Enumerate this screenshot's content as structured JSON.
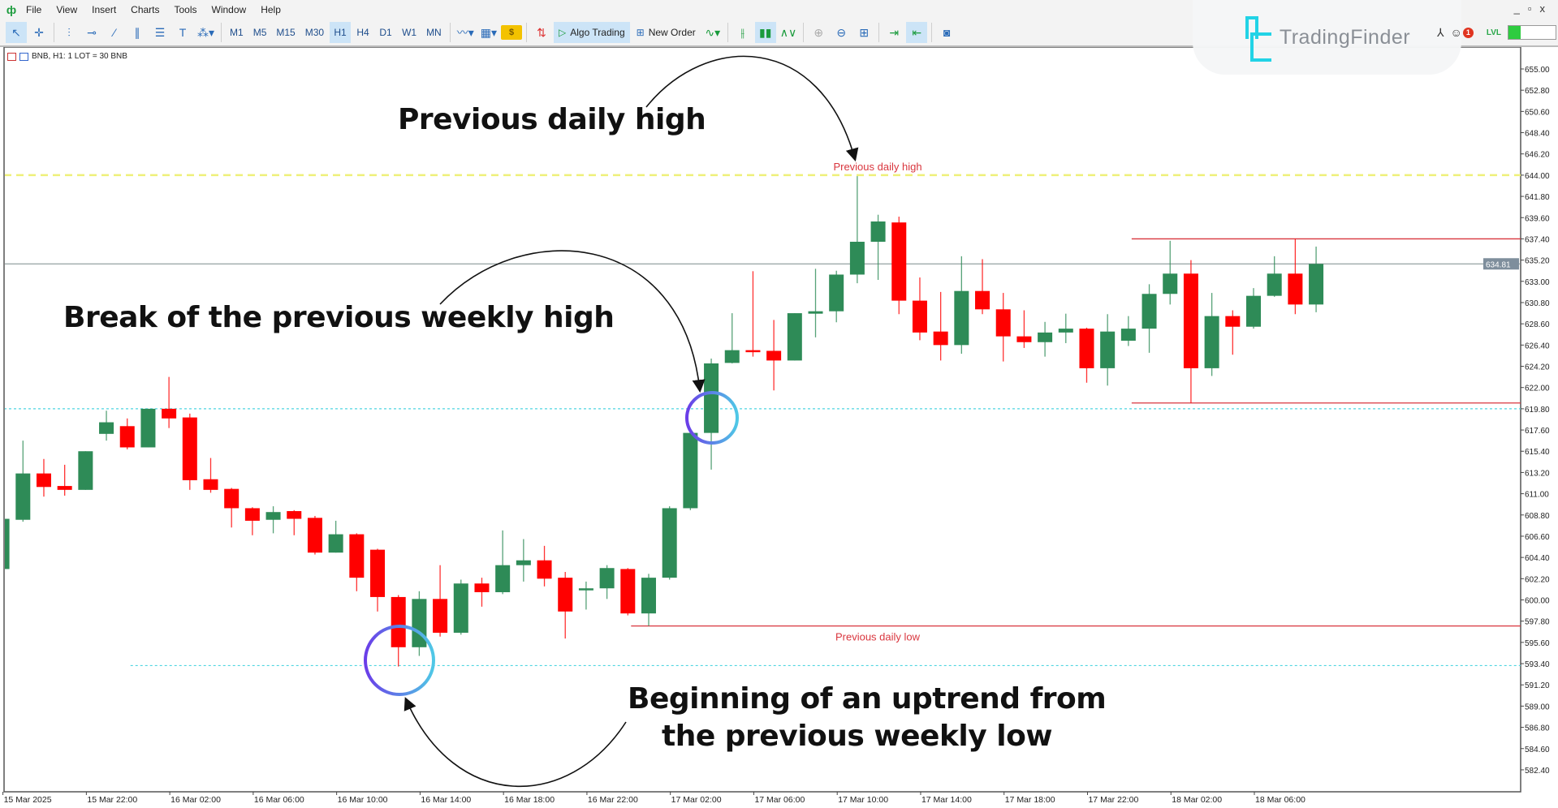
{
  "menu": [
    "File",
    "View",
    "Insert",
    "Charts",
    "Tools",
    "Window",
    "Help"
  ],
  "toolbar": {
    "tools": [
      "cursor-icon",
      "crosshair-icon",
      "vertical-line-icon",
      "horizontal-line-icon",
      "trendline-icon",
      "channel-icon",
      "fibonacci-icon",
      "text-icon",
      "shapes-icon"
    ],
    "timeframes": [
      "M1",
      "M5",
      "M15",
      "M30",
      "H1",
      "H4",
      "D1",
      "W1",
      "MN"
    ],
    "active_timeframe": "H1",
    "algo_trading_label": "Algo Trading",
    "new_order_label": "New Order",
    "notification_count": "1",
    "level_label": "LVL",
    "level_fill": 0.25
  },
  "brand": {
    "name": "TradingFinder",
    "color": "#22d3e6"
  },
  "chart_header": "BNB, H1:  1 LOT = 30 BNB",
  "annotations": {
    "prev_daily_high": "Previous daily high",
    "break_weekly_high": "Break of the previous weekly high",
    "uptrend_line1": "Beginning of an uptrend from",
    "uptrend_line2": "the previous weekly low"
  },
  "chart_data": {
    "type": "candlestick",
    "symbol": "BNB",
    "timeframe": "H1",
    "colors": {
      "up": "#2e8b57",
      "down": "#ff0000",
      "weekly_level": "#4fd6e0",
      "daily_high": "#eef07a",
      "daily_level": "#d9363e",
      "bid": "#7a8a8a"
    },
    "ylim": [
      580.6,
      656.6
    ],
    "y_tick_labels": [
      "655.00",
      "652.80",
      "650.60",
      "648.40",
      "646.20",
      "644.00",
      "641.80",
      "639.60",
      "637.40",
      "635.20",
      "633.00",
      "630.80",
      "628.60",
      "626.40",
      "624.20",
      "622.00",
      "619.80",
      "617.60",
      "615.40",
      "613.20",
      "611.00",
      "608.80",
      "606.60",
      "604.40",
      "602.20",
      "600.00",
      "597.80",
      "595.60",
      "593.40",
      "591.20",
      "589.00",
      "586.80",
      "584.60",
      "582.40"
    ],
    "x_tick_labels": [
      "15 Mar 2025",
      "15 Mar 22:00",
      "16 Mar 02:00",
      "16 Mar 06:00",
      "16 Mar 10:00",
      "16 Mar 14:00",
      "16 Mar 18:00",
      "16 Mar 22:00",
      "17 Mar 02:00",
      "17 Mar 06:00",
      "17 Mar 10:00",
      "17 Mar 14:00",
      "17 Mar 18:00",
      "17 Mar 22:00",
      "18 Mar 02:00",
      "18 Mar 06:00"
    ],
    "x_tick_every": 4,
    "candles_ohlc": [
      [
        603.2,
        608.4,
        603.2,
        608.4
      ],
      [
        608.3,
        616.5,
        608.1,
        613.1
      ],
      [
        613.1,
        614.6,
        610.7,
        611.7
      ],
      [
        611.8,
        614.0,
        610.8,
        611.4
      ],
      [
        611.4,
        615.4,
        611.4,
        615.4
      ],
      [
        617.2,
        619.6,
        616.5,
        618.4
      ],
      [
        618.0,
        618.8,
        615.6,
        615.8
      ],
      [
        615.8,
        619.8,
        615.8,
        619.8
      ],
      [
        619.8,
        623.1,
        617.8,
        618.8
      ],
      [
        618.9,
        619.3,
        611.4,
        612.4
      ],
      [
        612.5,
        614.7,
        611.1,
        611.4
      ],
      [
        611.5,
        611.6,
        607.5,
        609.5
      ],
      [
        609.5,
        609.6,
        606.7,
        608.2
      ],
      [
        608.3,
        609.7,
        606.9,
        609.1
      ],
      [
        609.2,
        609.3,
        606.7,
        608.4
      ],
      [
        608.5,
        608.7,
        604.7,
        604.9
      ],
      [
        604.9,
        608.2,
        604.9,
        606.8
      ],
      [
        606.8,
        606.9,
        600.9,
        602.3
      ],
      [
        605.2,
        605.3,
        598.8,
        600.3
      ],
      [
        600.3,
        600.5,
        593.1,
        595.1
      ],
      [
        595.1,
        600.9,
        594.2,
        600.1
      ],
      [
        600.1,
        603.6,
        596.2,
        596.6
      ],
      [
        596.6,
        602.1,
        596.4,
        601.7
      ],
      [
        601.7,
        602.3,
        599.3,
        600.8
      ],
      [
        600.8,
        607.2,
        600.6,
        603.6
      ],
      [
        603.6,
        606.3,
        601.9,
        604.1
      ],
      [
        604.1,
        605.6,
        601.4,
        602.2
      ],
      [
        602.3,
        602.9,
        596.0,
        598.8
      ],
      [
        601.0,
        601.9,
        599.0,
        601.2
      ],
      [
        601.2,
        603.6,
        600.1,
        603.3
      ],
      [
        603.2,
        603.3,
        598.4,
        598.6
      ],
      [
        598.6,
        602.7,
        597.3,
        602.3
      ],
      [
        602.3,
        609.7,
        602.1,
        609.5
      ],
      [
        609.5,
        617.3,
        609.3,
        617.3
      ],
      [
        617.3,
        625.0,
        613.5,
        624.5
      ],
      [
        624.55,
        629.7,
        624.5,
        625.87
      ],
      [
        625.87,
        634.05,
        625.2,
        625.67
      ],
      [
        625.8,
        629.0,
        621.7,
        624.8
      ],
      [
        624.8,
        629.7,
        624.8,
        629.7
      ],
      [
        629.65,
        634.3,
        627.2,
        629.9
      ],
      [
        629.9,
        634.1,
        628.76,
        633.7
      ],
      [
        633.7,
        643.9,
        632.8,
        637.1
      ],
      [
        637.1,
        639.9,
        633.15,
        639.2
      ],
      [
        639.1,
        639.7,
        629.6,
        631.0
      ],
      [
        631.0,
        633.4,
        626.9,
        627.7
      ],
      [
        627.8,
        631.9,
        624.8,
        626.4
      ],
      [
        626.4,
        635.6,
        625.5,
        632.0
      ],
      [
        632.0,
        635.3,
        629.6,
        630.1
      ],
      [
        630.1,
        631.8,
        624.7,
        627.3
      ],
      [
        627.3,
        630.0,
        626.1,
        626.7
      ],
      [
        626.7,
        628.8,
        625.2,
        627.7
      ],
      [
        627.7,
        629.65,
        626.6,
        628.1
      ],
      [
        628.1,
        628.2,
        622.5,
        624.0
      ],
      [
        624.0,
        629.6,
        622.2,
        627.8
      ],
      [
        626.85,
        629.4,
        626.3,
        628.1
      ],
      [
        628.1,
        632.7,
        625.6,
        631.7
      ],
      [
        631.7,
        637.2,
        630.6,
        633.8
      ],
      [
        633.8,
        635.2,
        620.4,
        624.0
      ],
      [
        624.0,
        631.8,
        623.2,
        629.4
      ],
      [
        629.4,
        630.0,
        625.4,
        628.3
      ],
      [
        628.3,
        632.3,
        628.1,
        631.5
      ],
      [
        631.5,
        635.6,
        631.4,
        633.8
      ],
      [
        633.8,
        637.4,
        629.6,
        630.6
      ],
      [
        630.6,
        636.6,
        629.8,
        634.8
      ]
    ],
    "levels": {
      "previous_daily_high": {
        "price": 644.0,
        "label": "Previous daily high"
      },
      "previous_daily_low": {
        "price": 597.3,
        "label": "Previous daily low",
        "from_candle": 31
      },
      "previous_weekly_high": {
        "price": 619.8
      },
      "previous_weekly_low": {
        "price": 593.2,
        "from_candle": 7
      },
      "range_high": {
        "price": 637.4,
        "from_candle": 55
      },
      "range_low": {
        "price": 620.4,
        "from_candle": 55
      },
      "bid": {
        "price": 634.81,
        "label": "634.81"
      }
    }
  }
}
